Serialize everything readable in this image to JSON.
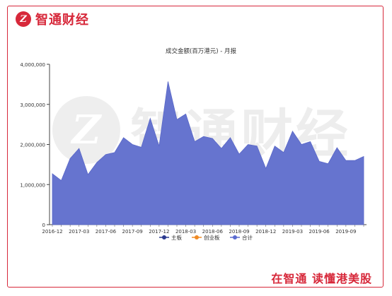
{
  "brand": {
    "logo_mark": "Z",
    "name": "智通财经",
    "slogan": "在智通  读懂港美股",
    "watermark_text": "智通财经",
    "accent_color": "#d7283a"
  },
  "chart_data": {
    "type": "area",
    "title": "成交金额(百万港元) - 月报",
    "xlabel": "",
    "ylabel": "",
    "ylim": [
      0,
      4000000
    ],
    "yticks": [
      0,
      1000000,
      2000000,
      3000000,
      4000000
    ],
    "ytick_labels": [
      "0",
      "1,000,000",
      "2,000,000",
      "3,000,000",
      "4,000,000"
    ],
    "x": [
      "2016-12",
      "2017-01",
      "2017-02",
      "2017-03",
      "2017-04",
      "2017-05",
      "2017-06",
      "2017-07",
      "2017-08",
      "2017-09",
      "2017-10",
      "2017-11",
      "2017-12",
      "2018-01",
      "2018-02",
      "2018-03",
      "2018-04",
      "2018-05",
      "2018-06",
      "2018-07",
      "2018-08",
      "2018-09",
      "2018-10",
      "2018-11",
      "2018-12",
      "2019-01",
      "2019-02",
      "2019-03",
      "2019-04",
      "2019-05",
      "2019-06",
      "2019-07",
      "2019-08",
      "2019-09",
      "2019-10",
      "2019-11"
    ],
    "xtick_labels": [
      "2016-12",
      "2017-03",
      "2017-06",
      "2017-09",
      "2017-12",
      "2018-03",
      "2018-06",
      "2018-09",
      "2018-12",
      "2019-03",
      "2019-06",
      "2019-09"
    ],
    "series": [
      {
        "name": "合计",
        "color": "#6674cf",
        "values": [
          1270000,
          1100000,
          1650000,
          1900000,
          1250000,
          1550000,
          1750000,
          1800000,
          2170000,
          2000000,
          1930000,
          2650000,
          1960000,
          3570000,
          2620000,
          2760000,
          2070000,
          2200000,
          2150000,
          1900000,
          2170000,
          1760000,
          2000000,
          1960000,
          1400000,
          1960000,
          1800000,
          2330000,
          2000000,
          2070000,
          1580000,
          1520000,
          1920000,
          1600000,
          1600000,
          1700000
        ]
      }
    ],
    "legend": [
      {
        "name": "主板",
        "color": "#2b3a8f"
      },
      {
        "name": "创业板",
        "color": "#f08a24"
      },
      {
        "name": "合计",
        "color": "#5b6bd0"
      }
    ],
    "legend_position": "bottom",
    "grid": false
  }
}
